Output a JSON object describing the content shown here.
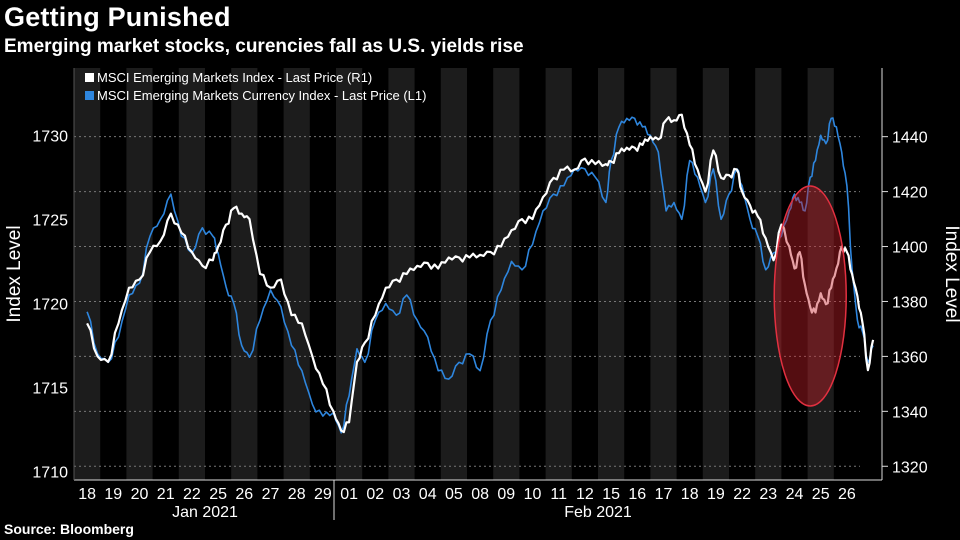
{
  "header": {
    "title": "Getting Punished",
    "subtitle": "Emerging market stocks, curencies fall as U.S. yields rise",
    "source": "Source: Bloomberg"
  },
  "chart_data": {
    "type": "line",
    "x_tick_labels": [
      "18",
      "19",
      "20",
      "21",
      "22",
      "25",
      "26",
      "27",
      "28",
      "29",
      "01",
      "02",
      "03",
      "04",
      "05",
      "08",
      "09",
      "10",
      "11",
      "12",
      "15",
      "16",
      "17",
      "18",
      "19",
      "22",
      "23",
      "24",
      "25",
      "26"
    ],
    "month_labels": [
      "Jan 2021",
      "Feb 2021"
    ],
    "left_axis": {
      "label": "Index Level",
      "range": [
        1709.5,
        1734
      ],
      "ticks": [
        1710,
        1715,
        1720,
        1725,
        1730
      ]
    },
    "right_axis": {
      "label": "Index Level",
      "range": [
        1315,
        1465
      ],
      "ticks": [
        1320,
        1340,
        1360,
        1380,
        1400,
        1420,
        1440
      ]
    },
    "series": [
      {
        "name": "MSCI Emerging Markets Index - Last Price (R1)",
        "axis": "right",
        "color": "#ffffff",
        "x": [
          0,
          0.4,
          0.8,
          1.2,
          1.6,
          2,
          2.4,
          2.8,
          3.2,
          3.6,
          4,
          4.4,
          4.8,
          5,
          5.3,
          5.6,
          5.9,
          6.2,
          6.6,
          7,
          7.4,
          7.8,
          8.2,
          8.6,
          9,
          9.4,
          9.7,
          10,
          10.3,
          10.6,
          11,
          11.4,
          11.8,
          12.2,
          12.6,
          13,
          13.4,
          13.8,
          14.2,
          14.6,
          15,
          15.4,
          15.8,
          16.2,
          16.6,
          17,
          17.4,
          17.8,
          18.2,
          18.6,
          19,
          19.4,
          19.8,
          20,
          20.3,
          20.6,
          20.9,
          21.2,
          21.5,
          21.8,
          22.1,
          22.4,
          22.7,
          23,
          23.3,
          23.6,
          23.9,
          24.2,
          24.5,
          24.8,
          25,
          25.3,
          25.6,
          25.9,
          26.2,
          26.5,
          26.8,
          27,
          27.2,
          27.4,
          27.6,
          27.8,
          28,
          28.2,
          28.4,
          28.6,
          28.8,
          29,
          29.2,
          29.4,
          29.6,
          29.8,
          30
        ],
        "y": [
          1372,
          1360,
          1358,
          1372,
          1385,
          1388,
          1398,
          1402,
          1412,
          1405,
          1398,
          1393,
          1395,
          1400,
          1408,
          1414,
          1412,
          1410,
          1390,
          1385,
          1388,
          1375,
          1372,
          1360,
          1350,
          1340,
          1333,
          1336,
          1358,
          1365,
          1375,
          1385,
          1388,
          1390,
          1393,
          1394,
          1392,
          1396,
          1396,
          1396,
          1397,
          1398,
          1400,
          1406,
          1410,
          1410,
          1418,
          1425,
          1428,
          1428,
          1432,
          1430,
          1430,
          1431,
          1434,
          1436,
          1436,
          1437,
          1440,
          1439,
          1446,
          1446,
          1448,
          1437,
          1428,
          1420,
          1435,
          1425,
          1426,
          1428,
          1420,
          1415,
          1411,
          1403,
          1395,
          1408,
          1400,
          1392,
          1398,
          1386,
          1378,
          1376,
          1383,
          1379,
          1385,
          1392,
          1400,
          1398,
          1390,
          1382,
          1372,
          1355,
          1366
        ]
      },
      {
        "name": "MSCI Emerging Markets Currency Index - Last Price (L1)",
        "axis": "left",
        "color": "#2e86de",
        "x": [
          0,
          0.4,
          0.8,
          1.2,
          1.6,
          2,
          2.4,
          2.8,
          3.2,
          3.6,
          4,
          4.4,
          4.8,
          5,
          5.3,
          5.6,
          5.9,
          6.2,
          6.6,
          7,
          7.4,
          7.8,
          8.2,
          8.6,
          9,
          9.4,
          9.7,
          10,
          10.3,
          10.6,
          11,
          11.4,
          11.8,
          12.2,
          12.6,
          13,
          13.4,
          13.8,
          14.2,
          14.6,
          15,
          15.4,
          15.8,
          16.2,
          16.6,
          17,
          17.4,
          17.8,
          18.2,
          18.6,
          19,
          19.4,
          19.8,
          20,
          20.3,
          20.6,
          20.9,
          21.2,
          21.5,
          21.8,
          22.1,
          22.4,
          22.7,
          23,
          23.3,
          23.6,
          23.9,
          24.2,
          24.5,
          24.8,
          25,
          25.3,
          25.6,
          25.9,
          26.2,
          26.5,
          26.8,
          27,
          27.2,
          27.4,
          27.6,
          27.8,
          28,
          28.2,
          28.4,
          28.6,
          28.8,
          29,
          29.2,
          29.4,
          29.6,
          29.8,
          30
        ],
        "y": [
          1719.5,
          1717,
          1716.5,
          1718,
          1720.5,
          1721.2,
          1724,
          1725,
          1726.5,
          1724,
          1723,
          1724.5,
          1724,
          1723,
          1721,
          1720,
          1717.5,
          1716.8,
          1719,
          1720.8,
          1719.8,
          1717.5,
          1716,
          1714,
          1713.3,
          1713.5,
          1712.3,
          1714.5,
          1717.3,
          1716.5,
          1719,
          1720,
          1719.3,
          1720.5,
          1719,
          1718,
          1716,
          1715.5,
          1716.5,
          1717,
          1716,
          1719,
          1720.8,
          1722.5,
          1722,
          1723.5,
          1725.5,
          1726.5,
          1727,
          1728,
          1728,
          1727.5,
          1726,
          1728.5,
          1730.5,
          1731,
          1731,
          1730.5,
          1730,
          1729,
          1725.5,
          1726,
          1725,
          1728.5,
          1727.5,
          1726,
          1728,
          1725,
          1726.5,
          1728,
          1727,
          1725,
          1724,
          1722,
          1723,
          1724,
          1725.5,
          1726.5,
          1726,
          1725.5,
          1727.5,
          1728.5,
          1730,
          1729.5,
          1731,
          1730.5,
          1729,
          1727,
          1722,
          1719,
          1718.3,
          1716.5,
          1717.5
        ]
      }
    ],
    "annotation": {
      "type": "ellipse",
      "description": "highlight of Feb 24-26 drop"
    }
  }
}
